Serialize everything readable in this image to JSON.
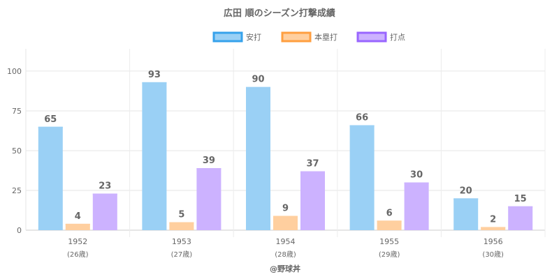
{
  "chart_data": {
    "type": "bar",
    "title": "広田 順のシーズン打撃成績",
    "categories": [
      "1952",
      "1953",
      "1954",
      "1955",
      "1956"
    ],
    "category_sublabels": [
      "(26歳)",
      "(27歳)",
      "(28歳)",
      "(29歳)",
      "(30歳)"
    ],
    "series": [
      {
        "name": "安打",
        "values": [
          65,
          93,
          90,
          66,
          20
        ],
        "color": "#9ad0f5",
        "border": "#36a2eb"
      },
      {
        "name": "本塁打",
        "values": [
          4,
          5,
          9,
          6,
          2
        ],
        "color": "#ffcf9f",
        "border": "#ff9f40"
      },
      {
        "name": "打点",
        "values": [
          23,
          39,
          37,
          30,
          15
        ],
        "color": "#ccb2ff",
        "border": "#9966ff"
      }
    ],
    "y_ticks": [
      "0",
      "25",
      "50",
      "75",
      "100"
    ],
    "ylim": [
      0,
      114
    ],
    "legend_position": "top",
    "credit": "@野球丼"
  }
}
